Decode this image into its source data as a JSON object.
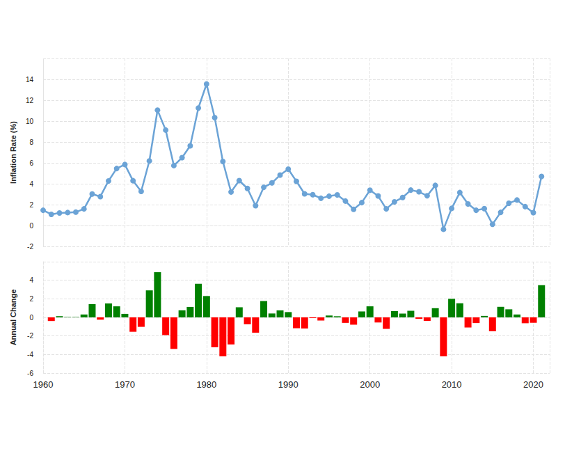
{
  "chart_data": [
    {
      "type": "line",
      "ylabel": "Inflation Rate (%)",
      "color": "#6ba3d6",
      "marker": "circle",
      "grid": true,
      "tick_labels": "y",
      "x": [
        1960,
        1961,
        1962,
        1963,
        1964,
        1965,
        1966,
        1967,
        1968,
        1969,
        1970,
        1971,
        1972,
        1973,
        1974,
        1975,
        1976,
        1977,
        1978,
        1979,
        1980,
        1981,
        1982,
        1983,
        1984,
        1985,
        1986,
        1987,
        1988,
        1989,
        1990,
        1991,
        1992,
        1993,
        1994,
        1995,
        1996,
        1997,
        1998,
        1999,
        2000,
        2001,
        2002,
        2003,
        2004,
        2005,
        2006,
        2007,
        2008,
        2009,
        2010,
        2011,
        2012,
        2013,
        2014,
        2015,
        2016,
        2017,
        2018,
        2019,
        2020,
        2021
      ],
      "values": [
        1.46,
        1.07,
        1.2,
        1.24,
        1.28,
        1.59,
        3.02,
        2.77,
        4.27,
        5.46,
        5.84,
        4.29,
        3.27,
        6.18,
        11.05,
        9.14,
        5.74,
        6.5,
        7.63,
        11.25,
        13.55,
        10.33,
        6.13,
        3.21,
        4.3,
        3.55,
        1.9,
        3.66,
        4.08,
        4.83,
        5.4,
        4.23,
        3.03,
        2.95,
        2.61,
        2.81,
        2.93,
        2.34,
        1.55,
        2.19,
        3.38,
        2.83,
        1.59,
        2.27,
        2.68,
        3.39,
        3.23,
        2.85,
        3.84,
        -0.36,
        1.64,
        3.16,
        2.07,
        1.46,
        1.62,
        0.12,
        1.26,
        2.13,
        2.44,
        1.81,
        1.23,
        4.7
      ],
      "xlim": [
        1960,
        2022
      ],
      "xticks": [
        1960,
        1970,
        1980,
        1990,
        2000,
        2010,
        2020
      ],
      "ylim": [
        -2,
        16
      ],
      "yticks": [
        -2,
        0,
        2,
        4,
        6,
        8,
        10,
        12,
        14
      ]
    },
    {
      "type": "bar",
      "ylabel": "Annual Change",
      "grid": true,
      "x": [
        1961,
        1962,
        1963,
        1964,
        1965,
        1966,
        1967,
        1968,
        1969,
        1970,
        1971,
        1972,
        1973,
        1974,
        1975,
        1976,
        1977,
        1978,
        1979,
        1980,
        1981,
        1982,
        1983,
        1984,
        1985,
        1986,
        1987,
        1988,
        1989,
        1990,
        1991,
        1992,
        1993,
        1994,
        1995,
        1996,
        1997,
        1998,
        1999,
        2000,
        2001,
        2002,
        2003,
        2004,
        2005,
        2006,
        2007,
        2008,
        2009,
        2010,
        2011,
        2012,
        2013,
        2014,
        2015,
        2016,
        2017,
        2018,
        2019,
        2020,
        2021
      ],
      "values": [
        -0.39,
        0.13,
        0.04,
        0.04,
        0.31,
        1.43,
        -0.25,
        1.5,
        1.19,
        0.38,
        -1.55,
        -1.02,
        2.91,
        4.87,
        -1.91,
        -3.4,
        0.76,
        1.13,
        3.62,
        2.3,
        -3.22,
        -4.2,
        -2.92,
        1.09,
        -0.75,
        -1.65,
        1.76,
        0.42,
        0.75,
        0.57,
        -1.17,
        -1.2,
        -0.08,
        -0.34,
        0.2,
        0.12,
        -0.59,
        -0.79,
        0.64,
        1.19,
        -0.55,
        -1.24,
        0.68,
        0.41,
        0.71,
        -0.16,
        -0.38,
        0.99,
        -4.2,
        2.0,
        1.52,
        -1.09,
        -0.61,
        0.16,
        -1.5,
        1.14,
        0.87,
        0.31,
        -0.63,
        -0.58,
        3.47
      ],
      "colors": [
        "#ff0000",
        "#008000",
        "#008000",
        "#008000",
        "#008000",
        "#008000",
        "#ff0000",
        "#008000",
        "#008000",
        "#008000",
        "#ff0000",
        "#ff0000",
        "#008000",
        "#008000",
        "#ff0000",
        "#ff0000",
        "#008000",
        "#008000",
        "#008000",
        "#008000",
        "#ff0000",
        "#ff0000",
        "#ff0000",
        "#008000",
        "#ff0000",
        "#ff0000",
        "#008000",
        "#008000",
        "#008000",
        "#008000",
        "#ff0000",
        "#ff0000",
        "#ff0000",
        "#ff0000",
        "#008000",
        "#008000",
        "#ff0000",
        "#ff0000",
        "#008000",
        "#008000",
        "#ff0000",
        "#ff0000",
        "#008000",
        "#008000",
        "#008000",
        "#ff0000",
        "#ff0000",
        "#008000",
        "#ff0000",
        "#008000",
        "#008000",
        "#ff0000",
        "#ff0000",
        "#008000",
        "#ff0000",
        "#008000",
        "#008000",
        "#008000",
        "#ff0000",
        "#ff0000",
        "#008000"
      ],
      "xlim": [
        1960,
        2022
      ],
      "xticks": [
        1960,
        1970,
        1980,
        1990,
        2000,
        2010,
        2020
      ],
      "ylim": [
        -6,
        6
      ],
      "yticks": [
        -6,
        -4,
        -2,
        0,
        2,
        4
      ]
    }
  ]
}
